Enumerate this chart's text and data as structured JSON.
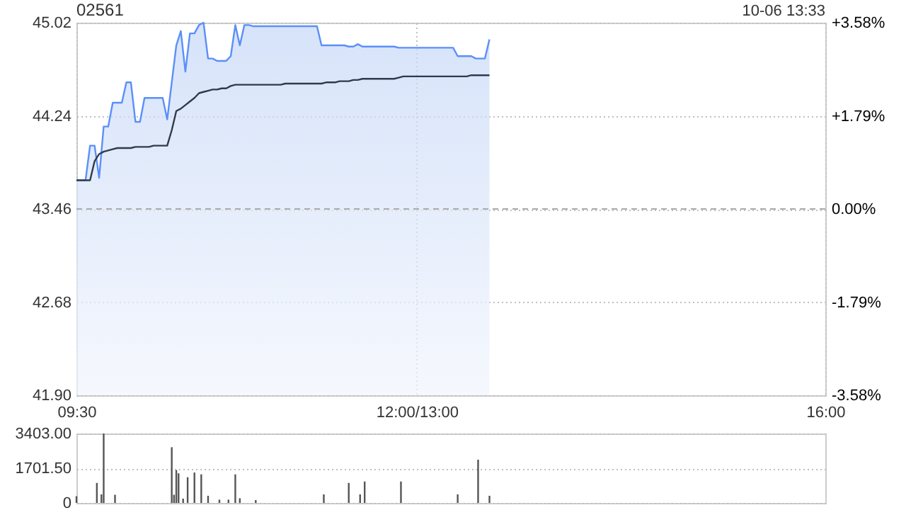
{
  "chart_data": [
    {
      "type": "line",
      "title": "02561",
      "annotations": [
        "10-06 13:33"
      ],
      "categories": [
        "09:30",
        null,
        null,
        null,
        null,
        null,
        null,
        null,
        null,
        null,
        null,
        null,
        null,
        null,
        null,
        null,
        null,
        null,
        null,
        null,
        null,
        null,
        null,
        null,
        null,
        null,
        null,
        null,
        null,
        null,
        null,
        null,
        null,
        null,
        null,
        null,
        null,
        null,
        null,
        null,
        null,
        null,
        null,
        null,
        null,
        null,
        null,
        null,
        null,
        null,
        null,
        null,
        null,
        null,
        null,
        null,
        null,
        null,
        null,
        null,
        null,
        null,
        null,
        null,
        null,
        null,
        null,
        null,
        null,
        null,
        null,
        null,
        null,
        null,
        null,
        "12:00/13:00",
        null,
        null,
        null,
        null,
        null,
        null,
        null,
        null,
        null,
        null,
        null,
        null,
        null,
        null,
        null,
        null,
        null,
        null,
        null,
        null,
        null,
        null,
        null,
        null,
        null,
        null,
        null,
        null,
        null,
        null,
        null,
        null,
        null,
        null,
        null,
        null,
        null,
        null,
        null,
        null,
        null,
        null,
        null,
        null,
        null,
        null,
        null,
        null,
        null,
        null,
        null,
        null,
        null,
        null,
        null,
        null,
        null,
        null,
        null,
        null,
        null,
        null,
        null,
        null,
        null,
        null,
        null,
        null,
        null,
        null,
        null,
        null,
        null,
        null,
        null,
        null,
        null,
        null,
        null,
        null,
        null,
        null,
        null,
        null,
        null,
        null,
        null,
        null,
        null,
        "16:00"
      ],
      "series": [
        {
          "type": "area",
          "color": "#5b8ff9",
          "values": [
            43.7,
            43.7,
            43.7,
            43.99,
            43.99,
            43.72,
            44.15,
            44.15,
            44.35,
            44.35,
            44.35,
            44.52,
            44.52,
            44.19,
            44.19,
            44.39,
            44.39,
            44.39,
            44.39,
            44.39,
            44.21,
            44.52,
            44.83,
            44.95,
            44.61,
            44.93,
            44.93,
            45.0,
            45.02,
            44.72,
            44.72,
            44.7,
            44.7,
            44.7,
            44.74,
            45.0,
            44.83,
            45.0,
            45.0,
            44.99,
            44.99,
            44.99,
            44.99,
            44.99,
            44.99,
            44.99,
            44.99,
            44.99,
            44.99,
            44.99,
            44.99,
            44.99,
            44.99,
            44.99,
            44.83,
            44.83,
            44.83,
            44.83,
            44.83,
            44.83,
            44.82,
            44.82,
            44.84,
            44.82,
            44.82,
            44.82,
            44.82,
            44.82,
            44.82,
            44.82,
            44.82,
            44.81,
            44.81,
            44.81,
            44.81,
            44.81,
            44.81,
            44.81,
            44.81,
            44.81,
            44.81,
            44.81,
            44.81,
            44.81,
            44.74,
            44.74,
            44.74,
            44.74,
            44.72,
            44.72,
            44.72,
            44.88,
            null,
            null,
            null,
            null,
            null,
            null,
            null,
            null,
            null,
            null,
            null,
            null,
            null,
            null,
            null,
            null,
            null,
            null,
            null,
            null,
            null,
            null,
            null,
            null,
            null,
            null,
            null,
            null,
            null,
            null,
            null,
            null,
            null,
            null,
            null,
            null,
            null,
            null,
            null,
            null,
            null,
            null,
            null,
            null,
            null,
            null,
            null,
            null,
            null,
            null,
            null,
            null,
            null,
            null,
            null,
            null,
            null,
            null,
            null,
            null,
            null,
            null,
            null,
            null,
            null,
            null,
            null,
            null,
            null,
            null,
            null,
            null,
            null,
            null
          ]
        },
        {
          "color": "#2f3b4c",
          "values": [
            43.7,
            43.7,
            43.7,
            43.7,
            43.86,
            43.92,
            43.94,
            43.95,
            43.96,
            43.97,
            43.97,
            43.97,
            43.97,
            43.98,
            43.98,
            43.98,
            43.98,
            43.99,
            43.99,
            43.99,
            43.99,
            44.12,
            44.28,
            44.3,
            44.33,
            44.36,
            44.39,
            44.43,
            44.44,
            44.45,
            44.46,
            44.46,
            44.47,
            44.47,
            44.49,
            44.5,
            44.5,
            44.5,
            44.5,
            44.5,
            44.5,
            44.5,
            44.5,
            44.5,
            44.5,
            44.5,
            44.51,
            44.51,
            44.51,
            44.51,
            44.51,
            44.51,
            44.51,
            44.51,
            44.51,
            44.52,
            44.52,
            44.52,
            44.53,
            44.53,
            44.53,
            44.54,
            44.54,
            44.55,
            44.55,
            44.55,
            44.55,
            44.55,
            44.55,
            44.55,
            44.55,
            44.56,
            44.57,
            44.57,
            44.57,
            44.57,
            44.57,
            44.57,
            44.57,
            44.57,
            44.57,
            44.57,
            44.57,
            44.57,
            44.57,
            44.57,
            44.57,
            44.58,
            44.58,
            44.58,
            44.58,
            44.58,
            null,
            null,
            null,
            null,
            null,
            null,
            null,
            null,
            null,
            null,
            null,
            null,
            null,
            null,
            null,
            null,
            null,
            null,
            null,
            null,
            null,
            null,
            null,
            null,
            null,
            null,
            null,
            null,
            null,
            null,
            null,
            null,
            null,
            null,
            null,
            null,
            null,
            null,
            null,
            null,
            null,
            null,
            null,
            null,
            null,
            null,
            null,
            null,
            null,
            null,
            null,
            null,
            null,
            null,
            null,
            null,
            null,
            null,
            null,
            null,
            null,
            null,
            null,
            null,
            null,
            null,
            null,
            null,
            null,
            null,
            null,
            null,
            null,
            null
          ]
        }
      ],
      "ylim": [
        41.9,
        45.02
      ],
      "yticks": [
        {
          "value": 41.9,
          "label": "41.90"
        },
        {
          "value": 42.68,
          "label": "42.68"
        },
        {
          "value": 43.46,
          "label": "43.46"
        },
        {
          "value": 44.24,
          "label": "44.24"
        },
        {
          "value": 45.02,
          "label": "45.02"
        }
      ],
      "y2lim": [
        -3.58,
        3.58
      ],
      "y2ticks": [
        {
          "value": -3.58,
          "label": "-3.58%"
        },
        {
          "value": -1.79,
          "label": "-1.79%"
        },
        {
          "value": 0,
          "label": "0.00%"
        },
        {
          "value": 1.79,
          "label": "+1.79%"
        },
        {
          "value": 3.58,
          "label": "+3.58%"
        }
      ],
      "ref_lines": [
        {
          "axis": "y",
          "value": 43.46,
          "color": "#aaaaaa",
          "line_style": "dashed"
        }
      ],
      "grid": true
    },
    {
      "type": "bar",
      "color": "#555555",
      "categories": [
        null,
        null,
        null,
        null,
        null,
        null,
        null,
        null,
        null,
        null,
        null,
        null,
        null,
        null,
        null,
        null,
        null,
        null,
        null,
        null,
        null,
        null,
        null,
        null,
        null,
        null,
        null,
        null,
        null,
        null,
        null,
        null,
        null,
        null,
        null,
        null,
        null,
        null,
        null,
        null,
        null,
        null,
        null,
        null,
        null,
        null,
        null,
        null,
        null,
        null,
        null,
        null,
        null,
        null,
        null,
        null,
        null,
        null,
        null,
        null,
        null,
        null,
        null,
        null,
        null,
        null,
        null,
        null,
        null,
        null,
        null,
        null,
        null,
        null,
        null,
        null,
        null,
        null,
        null,
        null,
        null,
        null,
        null,
        null,
        null,
        null,
        null,
        null,
        null,
        null,
        null,
        null,
        null,
        null,
        null,
        null,
        null,
        null,
        null,
        null,
        null,
        null,
        null,
        null,
        null,
        null,
        null,
        null,
        null,
        null,
        null,
        null,
        null,
        null,
        null,
        null,
        null,
        null,
        null,
        null,
        null,
        null,
        null,
        null,
        null,
        null,
        null,
        null,
        null,
        null,
        null,
        null,
        null,
        null,
        null,
        null,
        null,
        null,
        null,
        null,
        null,
        null,
        null,
        null,
        null,
        null,
        null,
        null,
        null,
        null,
        null,
        null,
        null,
        null,
        null,
        null,
        null,
        null,
        null,
        null,
        null,
        null,
        null,
        null,
        null,
        null,
        null,
        null,
        null,
        null,
        null,
        null,
        null,
        null,
        null,
        null,
        null,
        null,
        null,
        null,
        null,
        null,
        null,
        null,
        null,
        null,
        null,
        null,
        null,
        null,
        null,
        null,
        null,
        null,
        null,
        null,
        null,
        null,
        null,
        null,
        null,
        null,
        null,
        null,
        null,
        null,
        null,
        null,
        null,
        null,
        null,
        null,
        null,
        null,
        null,
        null,
        null,
        null,
        null,
        null,
        null,
        null,
        null,
        null,
        null,
        null,
        null,
        null,
        null,
        null,
        null,
        null,
        null,
        null,
        null,
        null,
        null,
        null,
        null,
        null,
        null,
        null,
        null,
        null,
        null,
        null,
        null,
        null,
        null,
        null,
        null,
        null,
        null,
        null,
        null,
        null,
        null,
        null,
        null,
        null,
        null,
        null,
        null,
        null,
        null,
        null,
        null,
        null,
        null,
        null,
        null,
        null,
        null,
        null,
        null,
        null,
        null,
        null,
        null,
        null,
        null,
        null,
        null,
        null,
        null,
        null,
        null,
        null,
        null,
        null,
        null,
        null,
        null,
        null,
        null,
        null,
        null,
        null,
        null,
        null,
        null,
        null,
        null,
        null,
        null,
        null,
        null,
        null,
        null,
        null,
        null,
        null,
        null,
        null,
        null,
        null,
        null,
        null,
        null,
        null,
        null,
        null,
        null,
        null,
        null,
        null,
        null,
        null,
        null,
        null,
        null
      ],
      "values": [
        330,
        null,
        null,
        null,
        null,
        null,
        null,
        null,
        null,
        980,
        null,
        420,
        3403,
        null,
        null,
        null,
        null,
        400,
        null,
        null,
        null,
        null,
        null,
        null,
        null,
        null,
        null,
        null,
        null,
        null,
        null,
        null,
        null,
        null,
        null,
        null,
        null,
        null,
        null,
        null,
        null,
        null,
        2730,
        400,
        1610,
        1450,
        null,
        210,
        null,
        1260,
        null,
        null,
        1490,
        null,
        null,
        1400,
        null,
        null,
        350,
        null,
        null,
        null,
        null,
        160,
        null,
        null,
        null,
        160,
        null,
        null,
        1400,
        null,
        230,
        null,
        null,
        null,
        null,
        null,
        null,
        140,
        null,
        null,
        null,
        null,
        null,
        null,
        null,
        null,
        null,
        null,
        null,
        null,
        null,
        null,
        null,
        null,
        null,
        null,
        null,
        null,
        null,
        null,
        null,
        null,
        null,
        null,
        null,
        null,
        null,
        420,
        null,
        null,
        null,
        null,
        null,
        null,
        null,
        null,
        null,
        null,
        980,
        null,
        null,
        null,
        null,
        420,
        null,
        1050,
        null,
        null,
        null,
        null,
        null,
        null,
        null,
        null,
        null,
        null,
        null,
        null,
        null,
        null,
        null,
        1050,
        null,
        null,
        null,
        null,
        null,
        null,
        null,
        null,
        null,
        null,
        null,
        null,
        null,
        null,
        null,
        null,
        null,
        null,
        null,
        null,
        null,
        null,
        null,
        null,
        420,
        null,
        null,
        null,
        null,
        null,
        null,
        null,
        null,
        2120,
        null,
        null,
        null,
        null,
        350,
        null,
        null,
        null,
        null,
        null,
        null,
        null,
        null,
        null,
        null,
        null,
        null,
        null,
        null,
        null,
        null,
        null,
        null,
        null,
        null,
        null,
        null,
        null,
        null,
        null,
        null,
        null,
        null,
        null,
        null,
        null,
        null,
        null,
        null,
        null,
        null,
        null,
        null,
        null,
        null,
        null,
        null,
        null,
        null,
        null,
        null,
        null,
        null,
        null,
        null,
        null,
        null,
        null,
        null,
        null,
        null,
        null,
        null,
        null,
        null,
        null,
        null,
        null,
        null,
        null,
        null,
        null,
        null,
        null,
        null,
        null,
        null,
        null,
        null,
        null,
        null,
        null,
        null,
        null,
        null,
        null,
        null,
        null,
        null,
        null,
        null,
        null,
        null,
        null,
        null,
        null,
        null,
        null,
        null,
        null,
        null,
        null,
        null,
        null,
        null,
        null,
        null,
        null,
        null,
        null,
        null,
        null,
        null,
        null,
        null,
        null,
        null,
        null,
        null,
        null,
        null,
        null,
        null,
        null,
        null,
        null,
        null,
        null,
        null,
        null,
        null,
        null,
        null,
        null,
        null,
        null,
        null,
        null,
        null,
        null,
        null,
        null,
        null,
        null,
        null,
        null,
        null,
        null,
        null,
        null,
        null,
        null,
        null
      ],
      "ylim": [
        0,
        3403
      ],
      "yticks": [
        0,
        {
          "value": 1701.5,
          "label": "1701.50"
        },
        {
          "value": 3403,
          "label": "3403.00"
        }
      ],
      "grid": "y",
      "tick_labels": "y"
    }
  ]
}
